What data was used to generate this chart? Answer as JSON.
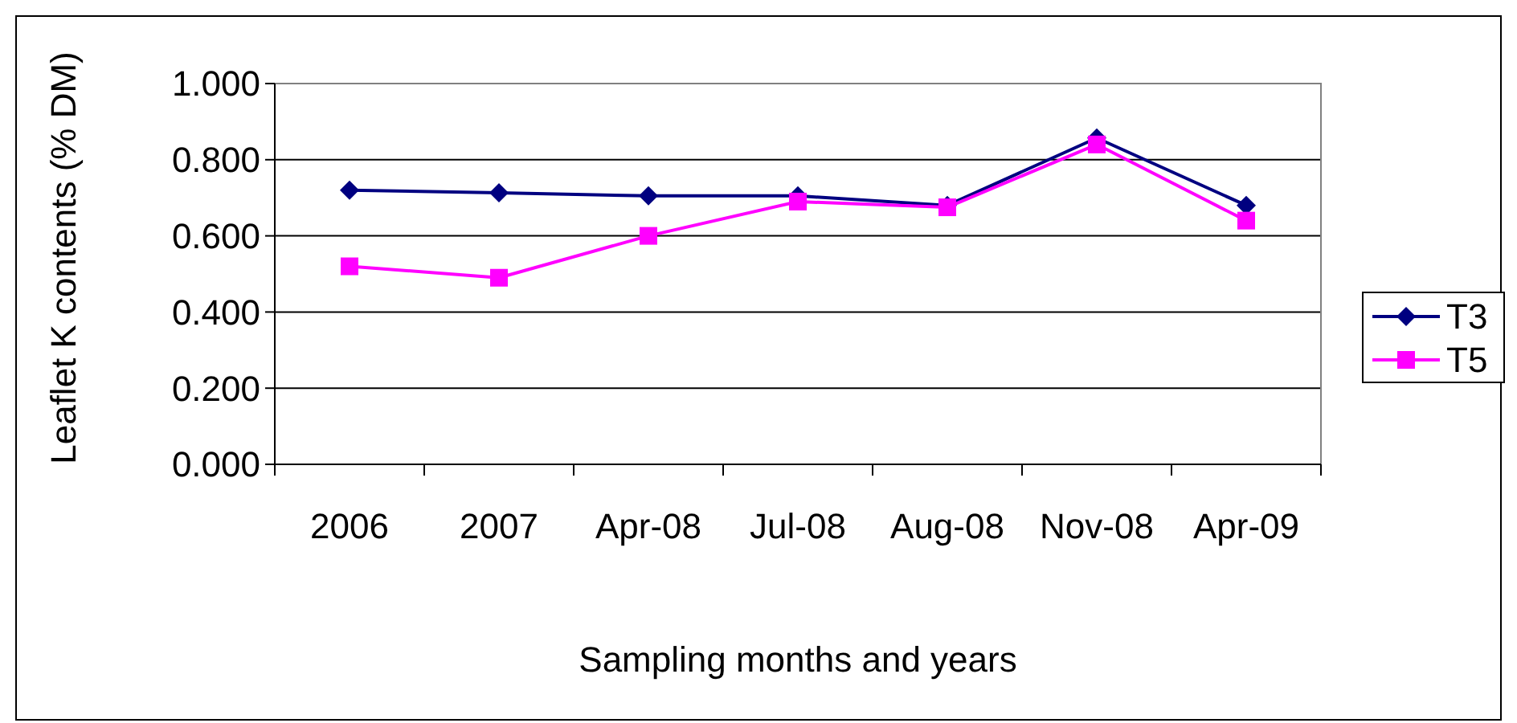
{
  "chart_data": {
    "type": "line",
    "xlabel": "Sampling months and years",
    "ylabel": "Leaflet K contents (% DM)",
    "categories": [
      "2006",
      "2007",
      "Apr-08",
      "Jul-08",
      "Aug-08",
      "Nov-08",
      "Apr-09"
    ],
    "series": [
      {
        "name": "T3",
        "color": "#000080",
        "marker": "diamond",
        "values": [
          0.72,
          0.713,
          0.705,
          0.705,
          0.68,
          0.857,
          0.68
        ]
      },
      {
        "name": "T5",
        "color": "#ff00ff",
        "marker": "square",
        "values": [
          0.52,
          0.49,
          0.6,
          0.69,
          0.675,
          0.84,
          0.64
        ]
      }
    ],
    "ylim": [
      0,
      1
    ],
    "yticks": [
      {
        "value": 0,
        "label": "0.000"
      },
      {
        "value": 0.2,
        "label": "0.200"
      },
      {
        "value": 0.4,
        "label": "0.400"
      },
      {
        "value": 0.6,
        "label": "0.600"
      },
      {
        "value": 0.8,
        "label": "0.800"
      },
      {
        "value": 1,
        "label": "1.000"
      }
    ],
    "grid": "y",
    "legend": "right",
    "line_style": "solid"
  }
}
